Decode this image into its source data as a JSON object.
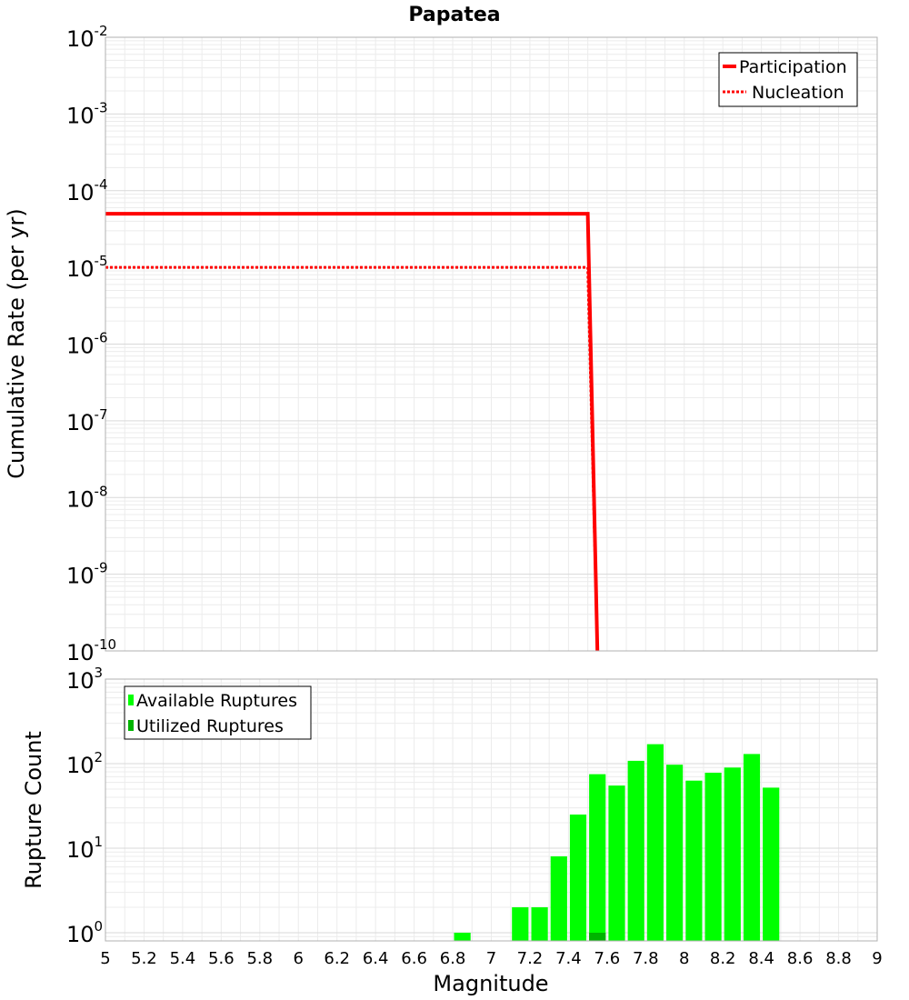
{
  "colors": {
    "participation": "#ff0000",
    "nucleation": "#ff0000",
    "available": "#00ff00",
    "utilized": "#00b400",
    "grid_minor": "#ececec",
    "grid_major": "#d9d9d9",
    "frame": "#b0b0b0"
  },
  "chart_data": [
    {
      "type": "line",
      "title": "Papatea",
      "xlabel": "Magnitude",
      "ylabel": "Cumulative Rate (per yr)",
      "yscale": "log",
      "xlim": [
        5,
        9
      ],
      "ylim": [
        1e-10,
        0.01
      ],
      "y_ticks": [
        {
          "base": "10",
          "exp": "-2",
          "value": 0.01
        },
        {
          "base": "10",
          "exp": "-3",
          "value": 0.001
        },
        {
          "base": "10",
          "exp": "-4",
          "value": 0.0001
        },
        {
          "base": "10",
          "exp": "-5",
          "value": 1e-05
        },
        {
          "base": "10",
          "exp": "-6",
          "value": 1e-06
        },
        {
          "base": "10",
          "exp": "-7",
          "value": 1e-07
        },
        {
          "base": "10",
          "exp": "-8",
          "value": 1e-08
        },
        {
          "base": "10",
          "exp": "-9",
          "value": 1e-09
        },
        {
          "base": "10",
          "exp": "-10",
          "value": 1e-10
        }
      ],
      "series": [
        {
          "name": "Participation",
          "style": "solid",
          "x": [
            5.0,
            7.5,
            7.55
          ],
          "y": [
            5e-05,
            5e-05,
            1e-10
          ]
        },
        {
          "name": "Nucleation",
          "style": "dotted",
          "x": [
            5.0,
            7.5,
            7.55
          ],
          "y": [
            1e-05,
            1e-05,
            1e-10
          ]
        }
      ],
      "legend": {
        "position": "top-right",
        "entries": [
          "Participation",
          "Nucleation"
        ]
      }
    },
    {
      "type": "bar",
      "xlabel": "Magnitude",
      "ylabel": "Rupture Count",
      "yscale": "log",
      "xlim": [
        5,
        9
      ],
      "ylim": [
        0.8,
        1000
      ],
      "bin_width": 0.1,
      "y_ticks": [
        {
          "base": "10",
          "exp": "3",
          "value": 1000
        },
        {
          "base": "10",
          "exp": "2",
          "value": 100
        },
        {
          "base": "10",
          "exp": "1",
          "value": 10
        },
        {
          "base": "10",
          "exp": "0",
          "value": 1
        }
      ],
      "x_ticks": [
        "5",
        "5.2",
        "5.4",
        "5.6",
        "5.8",
        "6",
        "6.2",
        "6.4",
        "6.6",
        "6.8",
        "7",
        "7.2",
        "7.4",
        "7.6",
        "7.8",
        "8",
        "8.2",
        "8.4",
        "8.6",
        "8.8",
        "9"
      ],
      "series": [
        {
          "name": "Available Ruptures",
          "x": [
            6.85,
            7.15,
            7.25,
            7.35,
            7.45,
            7.55,
            7.65,
            7.75,
            7.85,
            7.95,
            8.05,
            8.15,
            8.25,
            8.35,
            8.45
          ],
          "values": [
            1,
            2,
            2,
            8,
            25,
            75,
            55,
            108,
            170,
            97,
            63,
            78,
            90,
            130,
            52
          ]
        },
        {
          "name": "Utilized Ruptures",
          "x": [
            7.55
          ],
          "values": [
            1
          ]
        }
      ],
      "legend": {
        "position": "top-left",
        "entries": [
          "Available Ruptures",
          "Utilized Ruptures"
        ]
      }
    }
  ]
}
